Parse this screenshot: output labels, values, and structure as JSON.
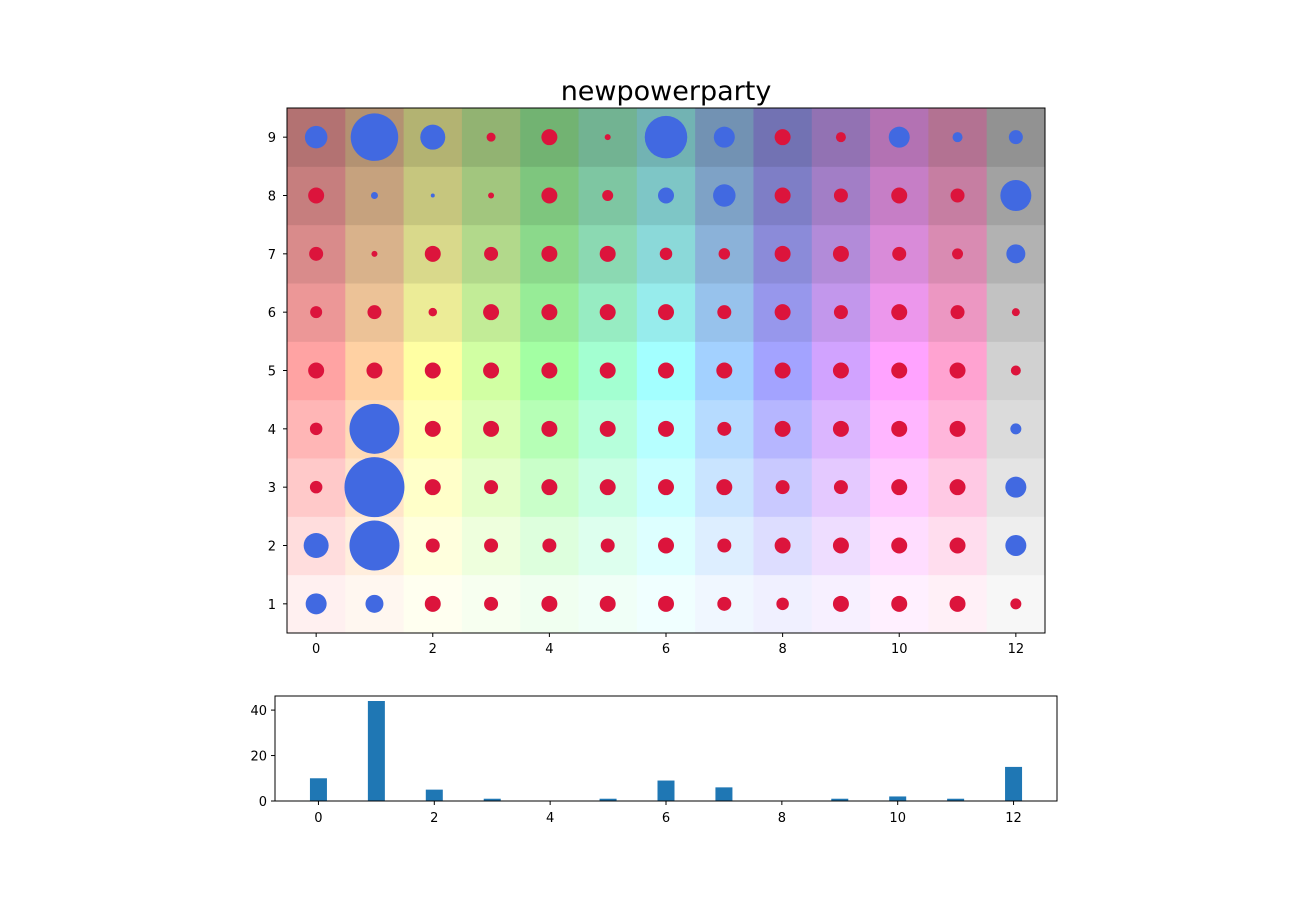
{
  "chart_data": [
    {
      "type": "scatter",
      "title": "newpowerparty",
      "x_ticks": [
        "0",
        "2",
        "4",
        "6",
        "8",
        "10",
        "12"
      ],
      "y_ticks": [
        "1",
        "2",
        "3",
        "4",
        "5",
        "6",
        "7",
        "8",
        "9"
      ],
      "xlim": [
        -0.5,
        12.5
      ],
      "ylim": [
        0.5,
        9.5
      ],
      "columns": [
        0,
        1,
        2,
        3,
        4,
        5,
        6,
        7,
        8,
        9,
        10,
        11,
        12
      ],
      "rows": [
        1,
        2,
        3,
        4,
        5,
        6,
        7,
        8,
        9
      ],
      "series_colors": {
        "positive": "#4169e1",
        "negative": "#dc143c"
      },
      "background_hues": [
        "#ff0000",
        "#ff8000",
        "#ffff00",
        "#80ff00",
        "#00ff00",
        "#00ff80",
        "#00ffff",
        "#0080ff",
        "#0000ff",
        "#8000ff",
        "#ff00ff",
        "#ff0080",
        "#808080"
      ],
      "points_note": "each point: [column, row, magnitude, kind] where kind 1 = blue, 0 = red",
      "points": [
        [
          0,
          1,
          0.42,
          1
        ],
        [
          1,
          1,
          0.36,
          1
        ],
        [
          2,
          1,
          0.32,
          0
        ],
        [
          3,
          1,
          0.28,
          0
        ],
        [
          4,
          1,
          0.32,
          0
        ],
        [
          5,
          1,
          0.32,
          0
        ],
        [
          6,
          1,
          0.32,
          0
        ],
        [
          7,
          1,
          0.28,
          0
        ],
        [
          8,
          1,
          0.25,
          0
        ],
        [
          9,
          1,
          0.32,
          0
        ],
        [
          10,
          1,
          0.32,
          0
        ],
        [
          11,
          1,
          0.32,
          0
        ],
        [
          12,
          1,
          0.22,
          0
        ],
        [
          0,
          2,
          0.5,
          1
        ],
        [
          1,
          2,
          1.0,
          1
        ],
        [
          2,
          2,
          0.28,
          0
        ],
        [
          3,
          2,
          0.28,
          0
        ],
        [
          4,
          2,
          0.28,
          0
        ],
        [
          5,
          2,
          0.28,
          0
        ],
        [
          6,
          2,
          0.32,
          0
        ],
        [
          7,
          2,
          0.28,
          0
        ],
        [
          8,
          2,
          0.32,
          0
        ],
        [
          9,
          2,
          0.32,
          0
        ],
        [
          10,
          2,
          0.32,
          0
        ],
        [
          11,
          2,
          0.32,
          0
        ],
        [
          12,
          2,
          0.42,
          1
        ],
        [
          0,
          3,
          0.25,
          0
        ],
        [
          1,
          3,
          1.2,
          1
        ],
        [
          2,
          3,
          0.32,
          0
        ],
        [
          3,
          3,
          0.28,
          0
        ],
        [
          4,
          3,
          0.32,
          0
        ],
        [
          5,
          3,
          0.32,
          0
        ],
        [
          6,
          3,
          0.32,
          0
        ],
        [
          7,
          3,
          0.32,
          0
        ],
        [
          8,
          3,
          0.28,
          0
        ],
        [
          9,
          3,
          0.28,
          0
        ],
        [
          10,
          3,
          0.32,
          0
        ],
        [
          11,
          3,
          0.32,
          0
        ],
        [
          12,
          3,
          0.42,
          1
        ],
        [
          0,
          4,
          0.25,
          0
        ],
        [
          1,
          4,
          1.0,
          1
        ],
        [
          2,
          4,
          0.32,
          0
        ],
        [
          3,
          4,
          0.32,
          0
        ],
        [
          4,
          4,
          0.32,
          0
        ],
        [
          5,
          4,
          0.32,
          0
        ],
        [
          6,
          4,
          0.32,
          0
        ],
        [
          7,
          4,
          0.28,
          0
        ],
        [
          8,
          4,
          0.32,
          0
        ],
        [
          9,
          4,
          0.32,
          0
        ],
        [
          10,
          4,
          0.32,
          0
        ],
        [
          11,
          4,
          0.32,
          0
        ],
        [
          12,
          4,
          0.22,
          1
        ],
        [
          0,
          5,
          0.32,
          0
        ],
        [
          1,
          5,
          0.32,
          0
        ],
        [
          2,
          5,
          0.32,
          0
        ],
        [
          3,
          5,
          0.32,
          0
        ],
        [
          4,
          5,
          0.32,
          0
        ],
        [
          5,
          5,
          0.32,
          0
        ],
        [
          6,
          5,
          0.32,
          0
        ],
        [
          7,
          5,
          0.32,
          0
        ],
        [
          8,
          5,
          0.32,
          0
        ],
        [
          9,
          5,
          0.32,
          0
        ],
        [
          10,
          5,
          0.32,
          0
        ],
        [
          11,
          5,
          0.32,
          0
        ],
        [
          12,
          5,
          0.2,
          0
        ],
        [
          0,
          6,
          0.24,
          0
        ],
        [
          1,
          6,
          0.28,
          0
        ],
        [
          2,
          6,
          0.17,
          0
        ],
        [
          3,
          6,
          0.32,
          0
        ],
        [
          4,
          6,
          0.32,
          0
        ],
        [
          5,
          6,
          0.32,
          0
        ],
        [
          6,
          6,
          0.32,
          0
        ],
        [
          7,
          6,
          0.28,
          0
        ],
        [
          8,
          6,
          0.32,
          0
        ],
        [
          9,
          6,
          0.28,
          0
        ],
        [
          10,
          6,
          0.32,
          0
        ],
        [
          11,
          6,
          0.28,
          0
        ],
        [
          12,
          6,
          0.16,
          0
        ],
        [
          0,
          7,
          0.28,
          0
        ],
        [
          1,
          7,
          0.12,
          0
        ],
        [
          2,
          7,
          0.32,
          0
        ],
        [
          3,
          7,
          0.28,
          0
        ],
        [
          4,
          7,
          0.32,
          0
        ],
        [
          5,
          7,
          0.32,
          0
        ],
        [
          6,
          7,
          0.25,
          0
        ],
        [
          7,
          7,
          0.23,
          0
        ],
        [
          8,
          7,
          0.32,
          0
        ],
        [
          9,
          7,
          0.32,
          0
        ],
        [
          10,
          7,
          0.28,
          0
        ],
        [
          11,
          7,
          0.22,
          0
        ],
        [
          12,
          7,
          0.38,
          1
        ],
        [
          0,
          8,
          0.32,
          0
        ],
        [
          1,
          8,
          0.14,
          1
        ],
        [
          2,
          8,
          0.06,
          1
        ],
        [
          3,
          8,
          0.12,
          0
        ],
        [
          4,
          8,
          0.32,
          0
        ],
        [
          5,
          8,
          0.22,
          0
        ],
        [
          6,
          8,
          0.32,
          1
        ],
        [
          7,
          8,
          0.45,
          1
        ],
        [
          8,
          8,
          0.32,
          0
        ],
        [
          9,
          8,
          0.28,
          0
        ],
        [
          10,
          8,
          0.32,
          0
        ],
        [
          11,
          8,
          0.28,
          0
        ],
        [
          12,
          8,
          0.62,
          1
        ],
        [
          0,
          9,
          0.45,
          1
        ],
        [
          1,
          9,
          0.95,
          1
        ],
        [
          2,
          9,
          0.5,
          1
        ],
        [
          3,
          9,
          0.18,
          0
        ],
        [
          4,
          9,
          0.32,
          0
        ],
        [
          5,
          9,
          0.12,
          0
        ],
        [
          6,
          9,
          0.85,
          1
        ],
        [
          7,
          9,
          0.42,
          1
        ],
        [
          8,
          9,
          0.32,
          0
        ],
        [
          9,
          9,
          0.2,
          0
        ],
        [
          10,
          9,
          0.42,
          1
        ],
        [
          11,
          9,
          0.2,
          1
        ],
        [
          12,
          9,
          0.28,
          1
        ]
      ]
    },
    {
      "type": "bar",
      "title": "",
      "categories": [
        0,
        1,
        2,
        3,
        4,
        5,
        6,
        7,
        8,
        9,
        10,
        11,
        12
      ],
      "values": [
        10,
        44,
        5,
        1,
        0,
        1,
        9,
        6,
        0,
        1,
        2,
        1,
        15
      ],
      "x_ticks": [
        "0",
        "2",
        "4",
        "6",
        "8",
        "10",
        "12"
      ],
      "y_ticks": [
        "0",
        "20",
        "40"
      ],
      "xlim": [
        -0.75,
        12.75
      ],
      "ylim": [
        0,
        46.2
      ],
      "bar_color": "#1f77b4"
    }
  ]
}
